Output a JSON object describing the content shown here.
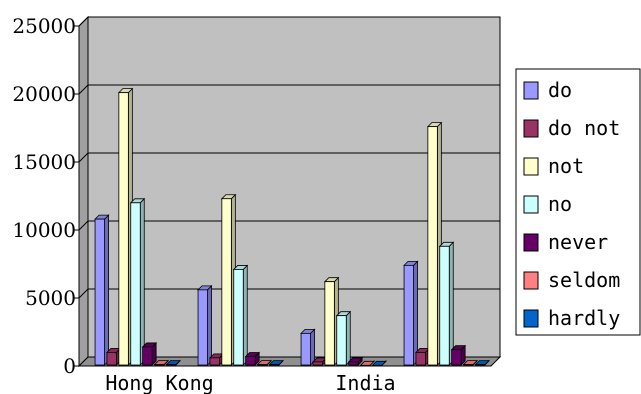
{
  "chart_data": {
    "type": "bar",
    "categories": [
      "Hong Kong",
      "",
      "India",
      ""
    ],
    "series": [
      {
        "name": "do",
        "color": "#9999ff",
        "values": [
          10800,
          5600,
          2400,
          7400
        ]
      },
      {
        "name": "do not",
        "color": "#993366",
        "values": [
          1000,
          600,
          300,
          1000
        ]
      },
      {
        "name": "not",
        "color": "#ffffcc",
        "values": [
          20100,
          12300,
          6200,
          17600
        ]
      },
      {
        "name": "no",
        "color": "#ccffff",
        "values": [
          12000,
          7100,
          3700,
          8800
        ]
      },
      {
        "name": "never",
        "color": "#660066",
        "values": [
          1400,
          700,
          300,
          1200
        ]
      },
      {
        "name": "seldom",
        "color": "#ff8080",
        "values": [
          100,
          100,
          50,
          100
        ]
      },
      {
        "name": "hardly",
        "color": "#0066cc",
        "values": [
          100,
          100,
          50,
          100
        ]
      }
    ],
    "yticks": [
      "0",
      "5000",
      "10000",
      "15000",
      "20000",
      "25000"
    ],
    "ylim": [
      0,
      25000
    ],
    "grid": true,
    "legend_position": "right",
    "plot_background": "#c0c0c0"
  }
}
